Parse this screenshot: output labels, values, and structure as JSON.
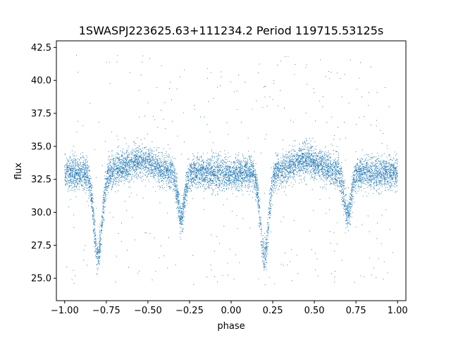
{
  "chart_data": {
    "type": "scatter",
    "title": "1SWASPJ223625.63+111234.2 Period 119715.53125s",
    "xlabel": "phase",
    "ylabel": "flux",
    "xlim": [
      -1.05,
      1.05
    ],
    "ylim": [
      23.3,
      43.0
    ],
    "x_ticks": [
      -1.0,
      -0.75,
      -0.5,
      -0.25,
      0.0,
      0.25,
      0.5,
      0.75,
      1.0
    ],
    "x_tick_labels": [
      "−1.00",
      "−0.75",
      "−0.50",
      "−0.25",
      "0.00",
      "0.25",
      "0.50",
      "0.75",
      "1.00"
    ],
    "y_ticks": [
      25.0,
      27.5,
      30.0,
      32.5,
      35.0,
      37.5,
      40.0,
      42.5
    ],
    "y_tick_labels": [
      "25.0",
      "27.5",
      "30.0",
      "32.5",
      "35.0",
      "37.5",
      "40.0",
      "42.5"
    ],
    "grid": false,
    "marker_color": "#1f77b4",
    "phase_range": [
      -1.0,
      1.0
    ],
    "folding_period": 1.0,
    "baseline_flux": 33.0,
    "max_flux_near_phase": [
      -0.55,
      0.45
    ],
    "max_flux": 33.9,
    "primary_eclipse": {
      "phases": [
        -0.8,
        0.2
      ],
      "min_flux": 26.7
    },
    "secondary_eclipse": {
      "phases": [
        -0.3,
        0.7
      ],
      "min_flux": 29.8
    },
    "scatter_sigma_flux": 0.6,
    "outlier_range": [
      24.5,
      42.0
    ]
  }
}
